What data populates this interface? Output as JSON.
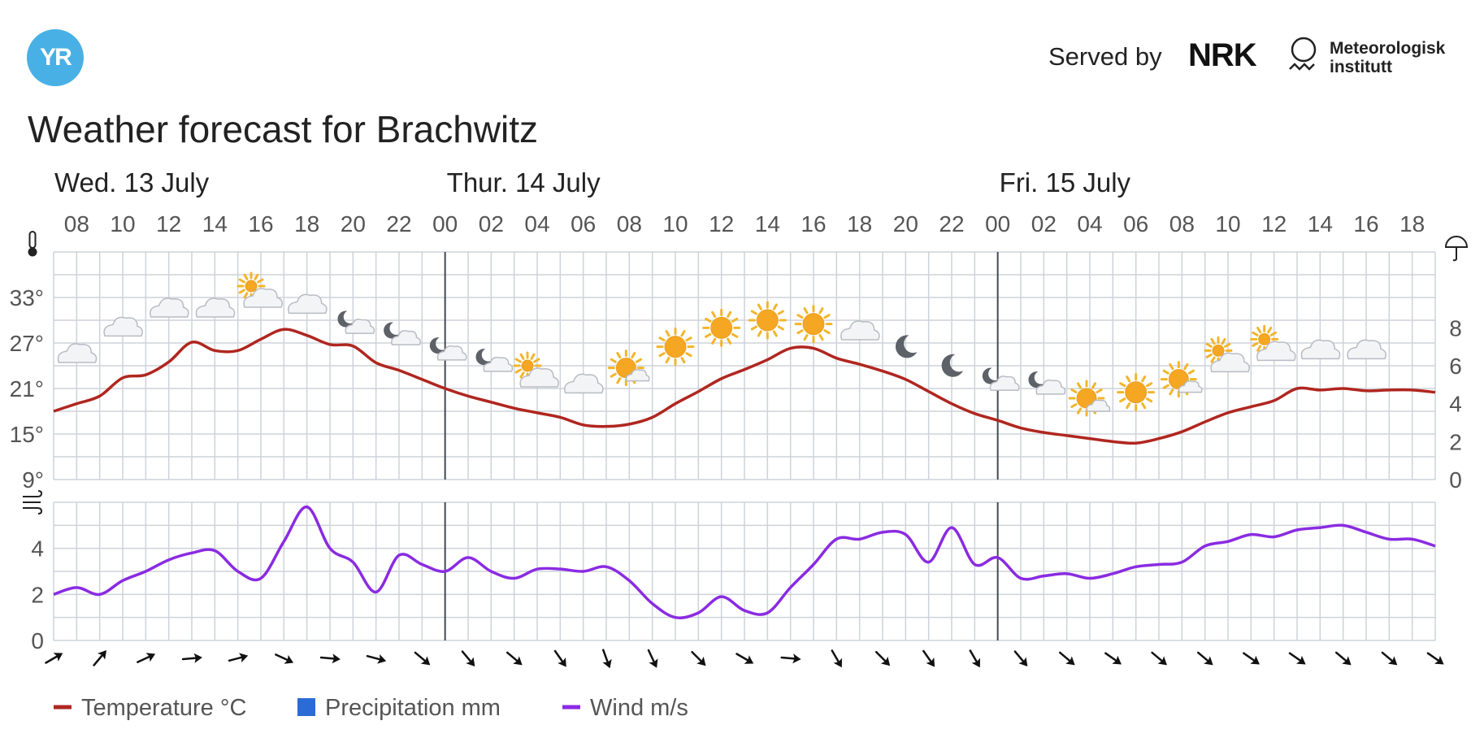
{
  "brand": {
    "logo_text": "YR",
    "served_by": "Served by",
    "nrk": "NRK",
    "met_line1": "Meteorologisk",
    "met_line2": "institutt"
  },
  "title": "Weather forecast for Brachwitz",
  "colors": {
    "temperature": "#b0261f",
    "precipitation": "#2b6bd6",
    "wind": "#8a2be2",
    "grid": "#cdd3da",
    "day_divider": "#444a52",
    "logo": "#49b0e6"
  },
  "chart_data": {
    "type": "line",
    "x_axis": {
      "unit": "hour",
      "start_hour": 7,
      "end_hour": 67
    },
    "days": [
      {
        "label": "Wed. 13 July",
        "start_hour": 7
      },
      {
        "label": "Thur. 14 July",
        "start_hour": 24
      },
      {
        "label": "Fri. 15 July",
        "start_hour": 48
      }
    ],
    "hour_ticks": [
      {
        "hour": 8,
        "label": "08"
      },
      {
        "hour": 10,
        "label": "10"
      },
      {
        "hour": 12,
        "label": "12"
      },
      {
        "hour": 14,
        "label": "14"
      },
      {
        "hour": 16,
        "label": "16"
      },
      {
        "hour": 18,
        "label": "18"
      },
      {
        "hour": 20,
        "label": "20"
      },
      {
        "hour": 22,
        "label": "22"
      },
      {
        "hour": 24,
        "label": "00"
      },
      {
        "hour": 26,
        "label": "02"
      },
      {
        "hour": 28,
        "label": "04"
      },
      {
        "hour": 30,
        "label": "06"
      },
      {
        "hour": 32,
        "label": "08"
      },
      {
        "hour": 34,
        "label": "10"
      },
      {
        "hour": 36,
        "label": "12"
      },
      {
        "hour": 38,
        "label": "14"
      },
      {
        "hour": 40,
        "label": "16"
      },
      {
        "hour": 42,
        "label": "18"
      },
      {
        "hour": 44,
        "label": "20"
      },
      {
        "hour": 46,
        "label": "22"
      },
      {
        "hour": 48,
        "label": "00"
      },
      {
        "hour": 50,
        "label": "02"
      },
      {
        "hour": 52,
        "label": "04"
      },
      {
        "hour": 54,
        "label": "06"
      },
      {
        "hour": 56,
        "label": "08"
      },
      {
        "hour": 58,
        "label": "10"
      },
      {
        "hour": 60,
        "label": "12"
      },
      {
        "hour": 62,
        "label": "14"
      },
      {
        "hour": 64,
        "label": "16"
      },
      {
        "hour": 66,
        "label": "18"
      }
    ],
    "temperature_axis": {
      "icon": "thermometer-icon",
      "range": [
        9,
        39
      ],
      "ticks": [
        9,
        15,
        21,
        27,
        33
      ],
      "tick_labels": [
        "9°",
        "15°",
        "21°",
        "27°",
        "33°"
      ]
    },
    "precipitation_axis": {
      "icon": "umbrella-icon",
      "range": [
        0,
        12
      ],
      "ticks": [
        0,
        2,
        4,
        6,
        8
      ],
      "tick_labels": [
        "0",
        "2",
        "4",
        "6",
        "8"
      ]
    },
    "wind_axis": {
      "icon": "wind-icon",
      "range": [
        0,
        6
      ],
      "ticks": [
        0,
        2,
        4
      ],
      "tick_labels": [
        "0",
        "2",
        "4"
      ]
    },
    "temperature": [
      [
        7,
        18
      ],
      [
        8,
        19
      ],
      [
        9,
        20
      ],
      [
        10,
        22.4
      ],
      [
        11,
        22.8
      ],
      [
        12,
        24.5
      ],
      [
        13,
        27.1
      ],
      [
        14,
        26
      ],
      [
        15,
        26
      ],
      [
        16,
        27.5
      ],
      [
        17,
        28.8
      ],
      [
        18,
        28
      ],
      [
        19,
        26.8
      ],
      [
        20,
        26.6
      ],
      [
        21,
        24.4
      ],
      [
        22,
        23.4
      ],
      [
        23,
        22.2
      ],
      [
        24,
        21
      ],
      [
        25,
        20
      ],
      [
        26,
        19.2
      ],
      [
        27,
        18.4
      ],
      [
        28,
        17.8
      ],
      [
        29,
        17.2
      ],
      [
        30,
        16.2
      ],
      [
        31,
        16
      ],
      [
        32,
        16.3
      ],
      [
        33,
        17.2
      ],
      [
        34,
        19
      ],
      [
        35,
        20.6
      ],
      [
        36,
        22.3
      ],
      [
        37,
        23.5
      ],
      [
        38,
        24.8
      ],
      [
        39,
        26.3
      ],
      [
        40,
        26.3
      ],
      [
        41,
        25
      ],
      [
        42,
        24.2
      ],
      [
        43,
        23.3
      ],
      [
        44,
        22.2
      ],
      [
        45,
        20.6
      ],
      [
        46,
        19
      ],
      [
        47,
        17.7
      ],
      [
        48,
        16.8
      ],
      [
        49,
        15.8
      ],
      [
        50,
        15.2
      ],
      [
        51,
        14.8
      ],
      [
        52,
        14.4
      ],
      [
        53,
        14
      ],
      [
        54,
        13.8
      ],
      [
        55,
        14.4
      ],
      [
        56,
        15.3
      ],
      [
        57,
        16.6
      ],
      [
        58,
        17.8
      ],
      [
        59,
        18.6
      ],
      [
        60,
        19.4
      ],
      [
        61,
        21
      ],
      [
        62,
        20.8
      ],
      [
        63,
        21
      ],
      [
        64,
        20.7
      ],
      [
        65,
        20.8
      ],
      [
        66,
        20.8
      ],
      [
        67,
        20.5
      ]
    ],
    "precipitation": [],
    "wind": [
      [
        7,
        2
      ],
      [
        8,
        2.3
      ],
      [
        9,
        2
      ],
      [
        10,
        2.6
      ],
      [
        11,
        3
      ],
      [
        12,
        3.5
      ],
      [
        13,
        3.8
      ],
      [
        14,
        3.9
      ],
      [
        15,
        3
      ],
      [
        16,
        2.7
      ],
      [
        17,
        4.3
      ],
      [
        18,
        5.8
      ],
      [
        19,
        4
      ],
      [
        20,
        3.4
      ],
      [
        21,
        2.1
      ],
      [
        22,
        3.7
      ],
      [
        23,
        3.3
      ],
      [
        24,
        3
      ],
      [
        25,
        3.6
      ],
      [
        26,
        3
      ],
      [
        27,
        2.7
      ],
      [
        28,
        3.1
      ],
      [
        29,
        3.1
      ],
      [
        30,
        3
      ],
      [
        31,
        3.2
      ],
      [
        32,
        2.6
      ],
      [
        33,
        1.6
      ],
      [
        34,
        1
      ],
      [
        35,
        1.2
      ],
      [
        36,
        1.9
      ],
      [
        37,
        1.3
      ],
      [
        38,
        1.2
      ],
      [
        39,
        2.3
      ],
      [
        40,
        3.3
      ],
      [
        41,
        4.4
      ],
      [
        42,
        4.4
      ],
      [
        43,
        4.7
      ],
      [
        44,
        4.6
      ],
      [
        45,
        3.4
      ],
      [
        46,
        4.9
      ],
      [
        47,
        3.3
      ],
      [
        48,
        3.6
      ],
      [
        49,
        2.7
      ],
      [
        50,
        2.8
      ],
      [
        51,
        2.9
      ],
      [
        52,
        2.7
      ],
      [
        53,
        2.9
      ],
      [
        54,
        3.2
      ],
      [
        55,
        3.3
      ],
      [
        56,
        3.4
      ],
      [
        57,
        4.1
      ],
      [
        58,
        4.3
      ],
      [
        59,
        4.6
      ],
      [
        60,
        4.5
      ],
      [
        61,
        4.8
      ],
      [
        62,
        4.9
      ],
      [
        63,
        5
      ],
      [
        64,
        4.7
      ],
      [
        65,
        4.4
      ],
      [
        66,
        4.4
      ],
      [
        67,
        4.1
      ]
    ],
    "weather_symbols": [
      {
        "hour": 8,
        "icon": "cloud-icon",
        "level": 25.5
      },
      {
        "hour": 10,
        "icon": "cloud-icon",
        "level": 29
      },
      {
        "hour": 12,
        "icon": "cloud-icon",
        "level": 31.5
      },
      {
        "hour": 14,
        "icon": "cloud-icon",
        "level": 31.5
      },
      {
        "hour": 16,
        "icon": "partly-sunny-cloud-icon",
        "level": 33
      },
      {
        "hour": 18,
        "icon": "cloud-icon",
        "level": 32
      },
      {
        "hour": 20,
        "icon": "partly-cloudy-night-icon",
        "level": 29.5
      },
      {
        "hour": 22,
        "icon": "partly-cloudy-night-icon",
        "level": 28
      },
      {
        "hour": 24,
        "icon": "partly-cloudy-night-icon",
        "level": 26
      },
      {
        "hour": 26,
        "icon": "partly-cloudy-night-icon",
        "level": 24.5
      },
      {
        "hour": 28,
        "icon": "partly-sunny-cloud-icon",
        "level": 22.5
      },
      {
        "hour": 30,
        "icon": "cloud-icon",
        "level": 21.5
      },
      {
        "hour": 32,
        "icon": "sun-behind-cloud-icon",
        "level": 23.5
      },
      {
        "hour": 34,
        "icon": "sun-icon",
        "level": 26.5
      },
      {
        "hour": 36,
        "icon": "sun-icon",
        "level": 29
      },
      {
        "hour": 38,
        "icon": "sun-icon",
        "level": 30
      },
      {
        "hour": 40,
        "icon": "sun-icon",
        "level": 29.5
      },
      {
        "hour": 42,
        "icon": "cloud-icon",
        "level": 28.5
      },
      {
        "hour": 44,
        "icon": "moon-icon",
        "level": 26.5
      },
      {
        "hour": 46,
        "icon": "moon-icon",
        "level": 24
      },
      {
        "hour": 48,
        "icon": "partly-cloudy-night-icon",
        "level": 22
      },
      {
        "hour": 50,
        "icon": "partly-cloudy-night-icon",
        "level": 21.5
      },
      {
        "hour": 52,
        "icon": "sun-behind-cloud-icon",
        "level": 19.5
      },
      {
        "hour": 54,
        "icon": "sun-icon",
        "level": 20.5
      },
      {
        "hour": 56,
        "icon": "sun-behind-cloud-icon",
        "level": 22
      },
      {
        "hour": 58,
        "icon": "partly-sunny-cloud-icon",
        "level": 24.5
      },
      {
        "hour": 60,
        "icon": "partly-sunny-cloud-icon",
        "level": 26
      },
      {
        "hour": 62,
        "icon": "cloud-icon",
        "level": 26
      },
      {
        "hour": 64,
        "icon": "cloud-icon",
        "level": 26
      }
    ],
    "wind_directions": [
      {
        "hour": 7,
        "angle": -30
      },
      {
        "hour": 9,
        "angle": -50
      },
      {
        "hour": 11,
        "angle": -25
      },
      {
        "hour": 13,
        "angle": -5
      },
      {
        "hour": 15,
        "angle": -15
      },
      {
        "hour": 17,
        "angle": 25
      },
      {
        "hour": 19,
        "angle": 5
      },
      {
        "hour": 21,
        "angle": 15
      },
      {
        "hour": 23,
        "angle": 40
      },
      {
        "hour": 25,
        "angle": 50
      },
      {
        "hour": 27,
        "angle": 40
      },
      {
        "hour": 29,
        "angle": 55
      },
      {
        "hour": 31,
        "angle": 70
      },
      {
        "hour": 33,
        "angle": 65
      },
      {
        "hour": 35,
        "angle": 45
      },
      {
        "hour": 37,
        "angle": 30
      },
      {
        "hour": 39,
        "angle": 5
      },
      {
        "hour": 41,
        "angle": 60
      },
      {
        "hour": 43,
        "angle": 45
      },
      {
        "hour": 45,
        "angle": 55
      },
      {
        "hour": 47,
        "angle": 60
      },
      {
        "hour": 49,
        "angle": 50
      },
      {
        "hour": 51,
        "angle": 40
      },
      {
        "hour": 53,
        "angle": 35
      },
      {
        "hour": 55,
        "angle": 40
      },
      {
        "hour": 57,
        "angle": 40
      },
      {
        "hour": 59,
        "angle": 35
      },
      {
        "hour": 61,
        "angle": 35
      },
      {
        "hour": 63,
        "angle": 40
      },
      {
        "hour": 65,
        "angle": 40
      },
      {
        "hour": 67,
        "angle": 35
      }
    ],
    "legend": [
      {
        "label": "Temperature °C",
        "color": "#b0261f",
        "symbol": "line"
      },
      {
        "label": "Precipitation mm",
        "color": "#2b6bd6",
        "symbol": "square"
      },
      {
        "label": "Wind m/s",
        "color": "#8a2be2",
        "symbol": "line"
      }
    ],
    "grid": true,
    "legend_position": "bottom-left"
  }
}
